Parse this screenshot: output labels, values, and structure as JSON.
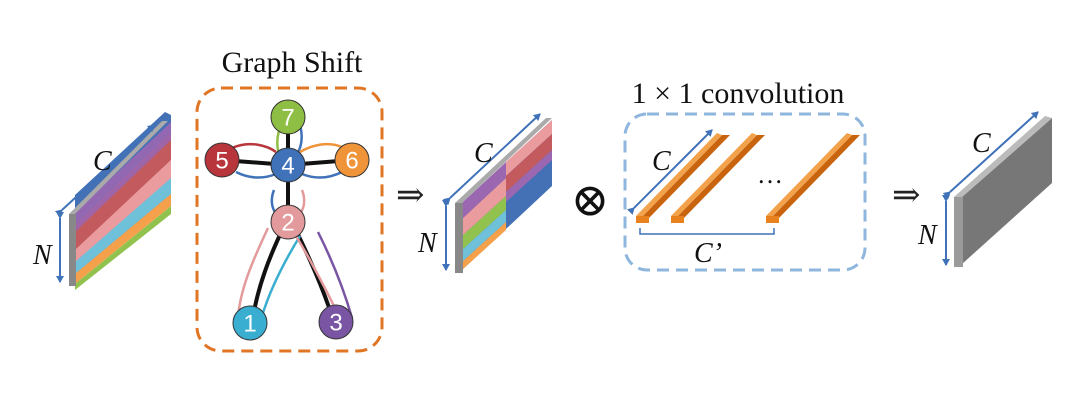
{
  "graph_shift": {
    "title": "Graph Shift",
    "nodes": [
      {
        "id": "1",
        "color": "#3aaed0"
      },
      {
        "id": "2",
        "color": "#e39a9c"
      },
      {
        "id": "3",
        "color": "#7a55a4"
      },
      {
        "id": "4",
        "color": "#3f72b8"
      },
      {
        "id": "5",
        "color": "#b8353b"
      },
      {
        "id": "6",
        "color": "#f0943a"
      },
      {
        "id": "7",
        "color": "#8fbe45"
      }
    ],
    "border_color": "#e07524"
  },
  "input_tensor": {
    "c_label": "C",
    "n_label": "N",
    "stripe_colors": [
      "#c35a5e",
      "#e99b9e",
      "#9a67b0",
      "#4471b6",
      "#6ec1d9",
      "#f5a14b",
      "#92c24e"
    ]
  },
  "shifted_tensor": {
    "c_label": "C",
    "n_label": "N"
  },
  "operator_symbol": "⊗",
  "arrow_symbol": "⇒",
  "convolution": {
    "title": "1 × 1 convolution",
    "c_label": "C",
    "c_prime_label": "C’",
    "ellipsis": "…",
    "filter_color": "#e8821f",
    "border_color": "#8fb6dd"
  },
  "output_tensor": {
    "c_label": "C",
    "n_label": "N",
    "color": "#777777"
  },
  "colors": {
    "dimension_arrow": "#3f72b8",
    "edge": "#111111"
  }
}
